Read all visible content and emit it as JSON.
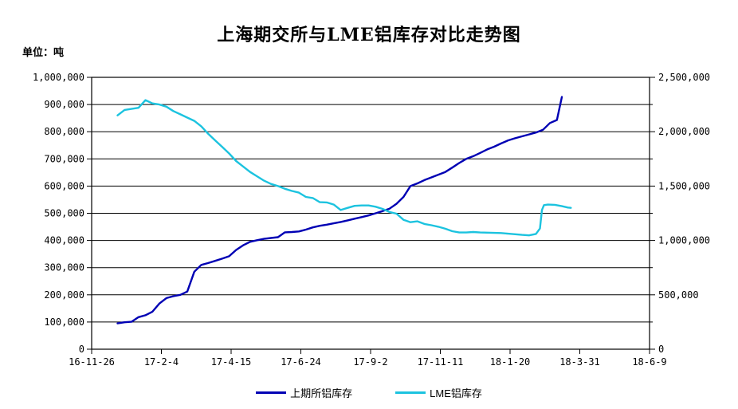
{
  "title": "上海期交所与LME铝库存对比走势图",
  "unit_label": "单位：吨",
  "legend": [
    {
      "label": "上期所铝库存"
    },
    {
      "label": "LME铝库存"
    }
  ],
  "chart_data": {
    "type": "line",
    "title": "上海期交所与LME铝库存对比走势图",
    "unit": "吨",
    "grid": "horizontal-black-gridlines",
    "legend_position": "bottom",
    "x_axis": {
      "tick_labels": [
        "16-11-26",
        "17-2-4",
        "17-4-15",
        "17-6-24",
        "17-9-2",
        "17-11-11",
        "18-1-20",
        "18-3-31",
        "18-6-9"
      ],
      "tick_days": [
        0,
        70,
        140,
        210,
        280,
        350,
        420,
        490,
        560
      ],
      "range_days": [
        0,
        560
      ],
      "note": "days offset from 16-11-26; data plotted weekly from ~16-12-22 to ~18-3-22"
    },
    "left_axis": {
      "min": 0,
      "max": 1000000,
      "tick_step": 100000,
      "tick_labels_top_to_bottom": [
        "1,000,000",
        "900,000",
        "800,000",
        "700,000",
        "600,000",
        "500,000",
        "400,000",
        "300,000",
        "200,000",
        "100,000",
        "0"
      ],
      "series_name": "上期所铝库存"
    },
    "right_axis": {
      "min": 0,
      "max": 2500000,
      "tick_step": 500000,
      "minor_tick_step": 250000,
      "tick_labels_top_to_bottom": [
        "2,500,000",
        "2,000,000",
        "1,500,000",
        "1,000,000",
        "500,000",
        "0"
      ],
      "series_name": "LME铝库存"
    },
    "series": [
      {
        "name": "上期所铝库存",
        "axis": "left",
        "color": "#0000B4",
        "points": [
          [
            26,
            95000
          ],
          [
            33,
            99000
          ],
          [
            40,
            101000
          ],
          [
            47,
            118000
          ],
          [
            54,
            125000
          ],
          [
            61,
            138000
          ],
          [
            68,
            168000
          ],
          [
            75,
            188000
          ],
          [
            82,
            195000
          ],
          [
            89,
            200000
          ],
          [
            96,
            212000
          ],
          [
            103,
            285000
          ],
          [
            110,
            310000
          ],
          [
            117,
            317000
          ],
          [
            124,
            325000
          ],
          [
            131,
            333000
          ],
          [
            138,
            342000
          ],
          [
            145,
            365000
          ],
          [
            152,
            382000
          ],
          [
            159,
            395000
          ],
          [
            166,
            401000
          ],
          [
            173,
            406000
          ],
          [
            180,
            409000
          ],
          [
            187,
            412000
          ],
          [
            194,
            430000
          ],
          [
            201,
            431000
          ],
          [
            208,
            433000
          ],
          [
            215,
            440000
          ],
          [
            222,
            448000
          ],
          [
            229,
            454000
          ],
          [
            236,
            458000
          ],
          [
            243,
            463000
          ],
          [
            250,
            468000
          ],
          [
            257,
            474000
          ],
          [
            264,
            480000
          ],
          [
            271,
            486000
          ],
          [
            278,
            492000
          ],
          [
            285,
            500000
          ],
          [
            292,
            508000
          ],
          [
            299,
            517000
          ],
          [
            306,
            535000
          ],
          [
            313,
            560000
          ],
          [
            320,
            600000
          ],
          [
            327,
            610000
          ],
          [
            334,
            622000
          ],
          [
            341,
            632000
          ],
          [
            348,
            642000
          ],
          [
            355,
            652000
          ],
          [
            362,
            668000
          ],
          [
            369,
            685000
          ],
          [
            376,
            700000
          ],
          [
            383,
            710000
          ],
          [
            390,
            722000
          ],
          [
            397,
            735000
          ],
          [
            404,
            745000
          ],
          [
            411,
            757000
          ],
          [
            418,
            768000
          ],
          [
            425,
            776000
          ],
          [
            432,
            783000
          ],
          [
            439,
            790000
          ],
          [
            446,
            797000
          ],
          [
            453,
            807000
          ],
          [
            460,
            832000
          ],
          [
            467,
            843000
          ],
          [
            472,
            928000
          ]
        ]
      },
      {
        "name": "LME铝库存",
        "axis": "right",
        "color": "#1CC3DF",
        "points": [
          [
            26,
            2150000
          ],
          [
            33,
            2200000
          ],
          [
            40,
            2210000
          ],
          [
            47,
            2220000
          ],
          [
            54,
            2290000
          ],
          [
            61,
            2260000
          ],
          [
            68,
            2250000
          ],
          [
            75,
            2230000
          ],
          [
            82,
            2190000
          ],
          [
            89,
            2160000
          ],
          [
            96,
            2130000
          ],
          [
            103,
            2100000
          ],
          [
            110,
            2050000
          ],
          [
            117,
            1980000
          ],
          [
            124,
            1920000
          ],
          [
            131,
            1860000
          ],
          [
            138,
            1800000
          ],
          [
            145,
            1730000
          ],
          [
            152,
            1680000
          ],
          [
            159,
            1630000
          ],
          [
            166,
            1590000
          ],
          [
            173,
            1550000
          ],
          [
            180,
            1520000
          ],
          [
            187,
            1500000
          ],
          [
            194,
            1475000
          ],
          [
            201,
            1455000
          ],
          [
            208,
            1440000
          ],
          [
            215,
            1400000
          ],
          [
            222,
            1390000
          ],
          [
            229,
            1352000
          ],
          [
            236,
            1350000
          ],
          [
            243,
            1330000
          ],
          [
            250,
            1280000
          ],
          [
            257,
            1300000
          ],
          [
            264,
            1318000
          ],
          [
            271,
            1322000
          ],
          [
            278,
            1322000
          ],
          [
            285,
            1310000
          ],
          [
            292,
            1290000
          ],
          [
            299,
            1262000
          ],
          [
            306,
            1246000
          ],
          [
            313,
            1190000
          ],
          [
            320,
            1168000
          ],
          [
            327,
            1176000
          ],
          [
            334,
            1152000
          ],
          [
            341,
            1140000
          ],
          [
            348,
            1126000
          ],
          [
            355,
            1108000
          ],
          [
            362,
            1085000
          ],
          [
            369,
            1073000
          ],
          [
            376,
            1073000
          ],
          [
            383,
            1078000
          ],
          [
            390,
            1073000
          ],
          [
            397,
            1072000
          ],
          [
            404,
            1070000
          ],
          [
            411,
            1068000
          ],
          [
            418,
            1062000
          ],
          [
            425,
            1057000
          ],
          [
            432,
            1051000
          ],
          [
            439,
            1047000
          ],
          [
            446,
            1060000
          ],
          [
            450,
            1110000
          ],
          [
            452,
            1280000
          ],
          [
            454,
            1325000
          ],
          [
            458,
            1330000
          ],
          [
            465,
            1328000
          ],
          [
            472,
            1315000
          ],
          [
            478,
            1303000
          ],
          [
            481,
            1300000
          ]
        ]
      }
    ]
  }
}
